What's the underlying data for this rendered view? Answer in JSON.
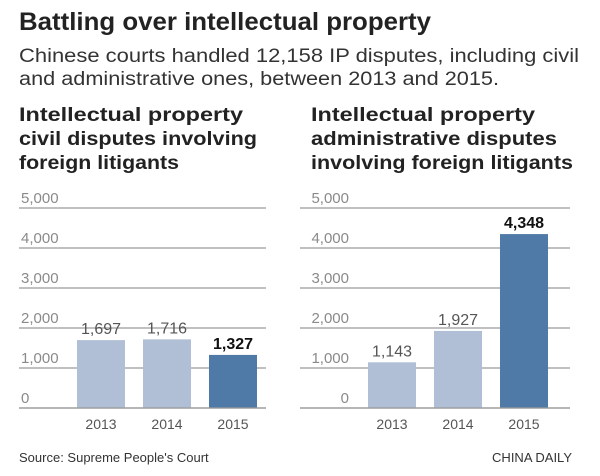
{
  "header": {
    "title": "Battling over intellectual property",
    "subtitle_lines": [
      "Chinese courts handled 12,158 IP disputes, including civil",
      "and administrative ones, between 2013 and 2015."
    ]
  },
  "footer": {
    "source": "Source: Supreme People's Court",
    "credit": "CHINA DAILY"
  },
  "colors": {
    "bar_light": "#b0bfd6",
    "bar_highlight": "#4f79a6",
    "grid": "#9a9a9a"
  },
  "chart_data": [
    {
      "type": "bar",
      "title_lines": [
        "Intellectual property",
        "civil disputes involving",
        "foreign litigants"
      ],
      "categories": [
        "2013",
        "2014",
        "2015"
      ],
      "values": [
        1697,
        1716,
        1327
      ],
      "value_labels": [
        "1,697",
        "1,716",
        "1,327"
      ],
      "highlight_index": 2,
      "ylim": [
        0,
        5000
      ],
      "yticks": [
        0,
        1000,
        2000,
        3000,
        4000,
        5000
      ],
      "ytick_labels": [
        "0",
        "1,000",
        "2,000",
        "3,000",
        "4,000",
        "5,000"
      ],
      "grid": true
    },
    {
      "type": "bar",
      "title_lines": [
        "Intellectual property",
        "administrative disputes",
        "involving foreign litigants"
      ],
      "categories": [
        "2013",
        "2014",
        "2015"
      ],
      "values": [
        1143,
        1927,
        4348
      ],
      "value_labels": [
        "1,143",
        "1,927",
        "4,348"
      ],
      "highlight_index": 2,
      "ylim": [
        0,
        5000
      ],
      "yticks": [
        0,
        1000,
        2000,
        3000,
        4000,
        5000
      ],
      "ytick_labels": [
        "0",
        "1,000",
        "2,000",
        "3,000",
        "4,000",
        "5,000"
      ],
      "grid": true
    }
  ]
}
